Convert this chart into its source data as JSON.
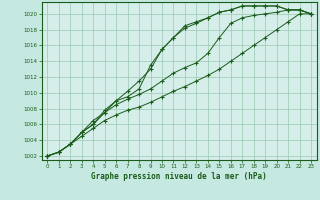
{
  "background_color": "#c5e8e0",
  "plot_bg_color": "#d5eeea",
  "grid_color": "#98c8b0",
  "line_color": "#1a5c1a",
  "title": "Graphe pression niveau de la mer (hPa)",
  "xlim": [
    -0.5,
    23.5
  ],
  "ylim": [
    1001.5,
    1021.5
  ],
  "xticks": [
    0,
    1,
    2,
    3,
    4,
    5,
    6,
    7,
    8,
    9,
    10,
    11,
    12,
    13,
    14,
    15,
    16,
    17,
    18,
    19,
    20,
    21,
    22,
    23
  ],
  "yticks": [
    1002,
    1004,
    1006,
    1008,
    1010,
    1012,
    1014,
    1016,
    1018,
    1020
  ],
  "series": [
    [
      1002,
      1002.5,
      1003.5,
      1004.5,
      1005.5,
      1006.5,
      1007.2,
      1007.8,
      1008.2,
      1008.8,
      1009.5,
      1010.2,
      1010.8,
      1011.5,
      1012.2,
      1013.0,
      1014.0,
      1015.0,
      1016.0,
      1017.0,
      1018.0,
      1019.0,
      1020.0,
      1020.0
    ],
    [
      1002,
      1002.5,
      1003.5,
      1005.0,
      1006.0,
      1007.5,
      1008.5,
      1009.2,
      1009.8,
      1010.5,
      1011.5,
      1012.5,
      1013.2,
      1013.8,
      1015.0,
      1017.0,
      1018.8,
      1019.5,
      1019.8,
      1020.0,
      1020.2,
      1020.5,
      1020.5,
      1020.0
    ],
    [
      1002,
      1002.5,
      1003.5,
      1005.0,
      1006.5,
      1007.5,
      1009.0,
      1009.5,
      1010.5,
      1013.5,
      1015.5,
      1017.0,
      1018.2,
      1018.8,
      1019.5,
      1020.2,
      1020.5,
      1021.0,
      1021.0,
      1021.0,
      1021.0,
      1020.5,
      1020.5,
      1020.0
    ],
    [
      1002,
      1002.5,
      1003.5,
      1005.0,
      1006.0,
      1007.8,
      1009.0,
      1010.2,
      1011.5,
      1013.0,
      1015.5,
      1017.0,
      1018.5,
      1019.0,
      1019.5,
      1020.2,
      1020.5,
      1021.0,
      1021.0,
      1021.0,
      1021.0,
      1020.5,
      1020.5,
      1020.0
    ]
  ]
}
